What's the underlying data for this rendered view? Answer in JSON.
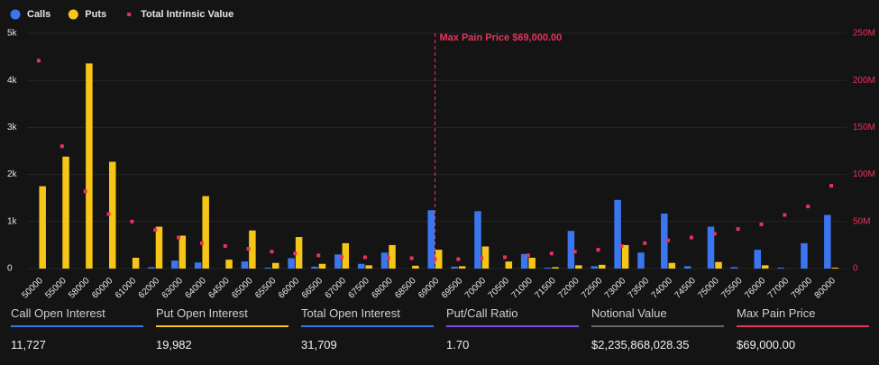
{
  "chart_data": {
    "type": "bar",
    "categories": [
      "50000",
      "55000",
      "58000",
      "60000",
      "61000",
      "62000",
      "63000",
      "64000",
      "64500",
      "65000",
      "65500",
      "66000",
      "66500",
      "67000",
      "67500",
      "68000",
      "68500",
      "69000",
      "69500",
      "70000",
      "70500",
      "71000",
      "71500",
      "72000",
      "72500",
      "73000",
      "73500",
      "74000",
      "74500",
      "75000",
      "75500",
      "76000",
      "77000",
      "79000",
      "80000"
    ],
    "series": [
      {
        "name": "Calls",
        "type": "bar",
        "color": "#3a76f0",
        "values": [
          0,
          0,
          0,
          0,
          0,
          30,
          170,
          130,
          0,
          150,
          20,
          220,
          40,
          300,
          100,
          340,
          0,
          1240,
          40,
          1220,
          0,
          310,
          20,
          800,
          50,
          1460,
          340,
          1170,
          50,
          890,
          30,
          400,
          20,
          540,
          1140
        ]
      },
      {
        "name": "Puts",
        "type": "bar",
        "color": "#f5c518",
        "values": [
          1750,
          2380,
          4360,
          2270,
          230,
          890,
          700,
          1540,
          190,
          810,
          120,
          670,
          100,
          540,
          70,
          500,
          60,
          400,
          50,
          470,
          150,
          230,
          30,
          70,
          80,
          500,
          0,
          120,
          0,
          140,
          0,
          70,
          0,
          0,
          20
        ]
      },
      {
        "name": "Total Intrinsic Value",
        "type": "scatter",
        "axis": "y2",
        "color": "#e8335a",
        "values": [
          221000000,
          130000000,
          82000000,
          58000000,
          50000000,
          41000000,
          33000000,
          27000000,
          24000000,
          21000000,
          18000000,
          16000000,
          14000000,
          12000000,
          12000000,
          11000000,
          11000000,
          10000000,
          10000000,
          11000000,
          12000000,
          14000000,
          16000000,
          18000000,
          20000000,
          24000000,
          27000000,
          30000000,
          33000000,
          37000000,
          42000000,
          47000000,
          57000000,
          66000000,
          88000000
        ]
      }
    ],
    "ylim": [
      0,
      5000
    ],
    "yticks": [
      0,
      {
        "value": 1000,
        "label": "1k"
      },
      {
        "value": 2000,
        "label": "2k"
      },
      {
        "value": 3000,
        "label": "3k"
      },
      {
        "value": 4000,
        "label": "4k"
      },
      {
        "value": 5000,
        "label": "5k"
      }
    ],
    "y2lim": [
      0,
      250000000
    ],
    "y2ticks": [
      0,
      {
        "value": 50000000,
        "label": "50M"
      },
      {
        "value": 100000000,
        "label": "100M"
      },
      {
        "value": 150000000,
        "label": "150M"
      },
      {
        "value": 200000000,
        "label": "200M"
      },
      {
        "value": 250000000,
        "label": "250M"
      }
    ],
    "y2color": "#e8335a",
    "grid": true,
    "annotation": {
      "label": "Max Pain Price $69,000.00",
      "at": "69000",
      "color": "#e8335a"
    }
  },
  "stats": [
    {
      "label": "Call Open Interest",
      "value": "11,727",
      "color": "#3a76f0"
    },
    {
      "label": "Put Open Interest",
      "value": "19,982",
      "color": "#f5c518"
    },
    {
      "label": "Total Open Interest",
      "value": "31,709",
      "color": "#3a76f0"
    },
    {
      "label": "Put/Call Ratio",
      "value": "1.70",
      "color": "#7b4dea"
    },
    {
      "label": "Notional Value",
      "value": "$2,235,868,028.35",
      "color": "#666666"
    },
    {
      "label": "Max Pain Price",
      "value": "$69,000.00",
      "color": "#e8335a"
    }
  ]
}
